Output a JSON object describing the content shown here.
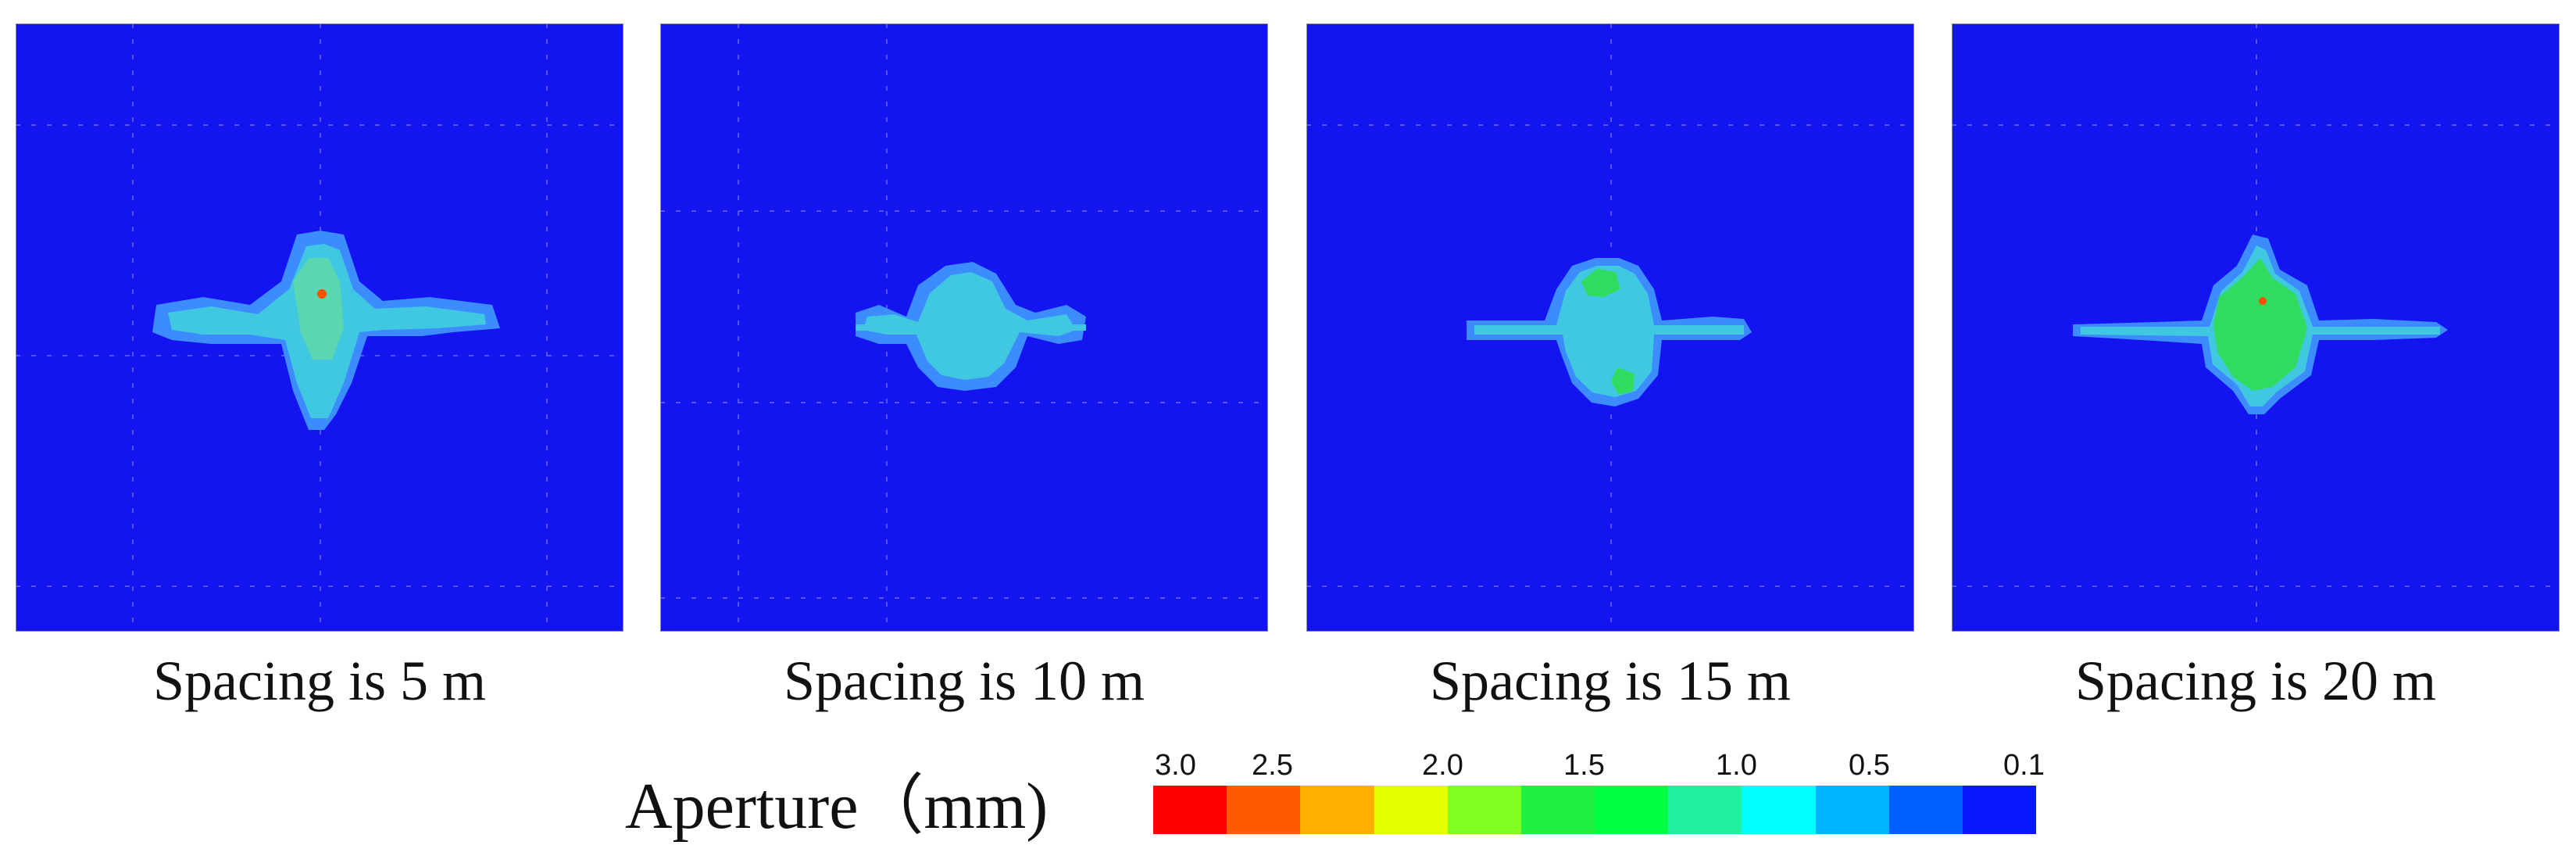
{
  "figure": {
    "panels": [
      {
        "caption": "Spacing is 5 m"
      },
      {
        "caption": "Spacing is 10 m"
      },
      {
        "caption": "Spacing is 15 m"
      },
      {
        "caption": "Spacing is 20 m"
      }
    ],
    "legend": {
      "title": "Aperture（mm)",
      "ticks": [
        "3.0",
        "2.5",
        "2.0",
        "1.5",
        "1.0",
        "0.5",
        "0.1"
      ],
      "colors": [
        "#ff0000",
        "#ff5a00",
        "#ffb000",
        "#e6ff00",
        "#80ff20",
        "#20f040",
        "#00ff40",
        "#20f0a0",
        "#00ffff",
        "#00b4ff",
        "#0060ff",
        "#0a18ff"
      ]
    },
    "palette": {
      "background": "#1414f0",
      "low": "#3c8cff",
      "mid": "#40c8e0",
      "high": "#30dc60",
      "peak": "#ff5000",
      "frame": "#8a8aa8"
    }
  }
}
